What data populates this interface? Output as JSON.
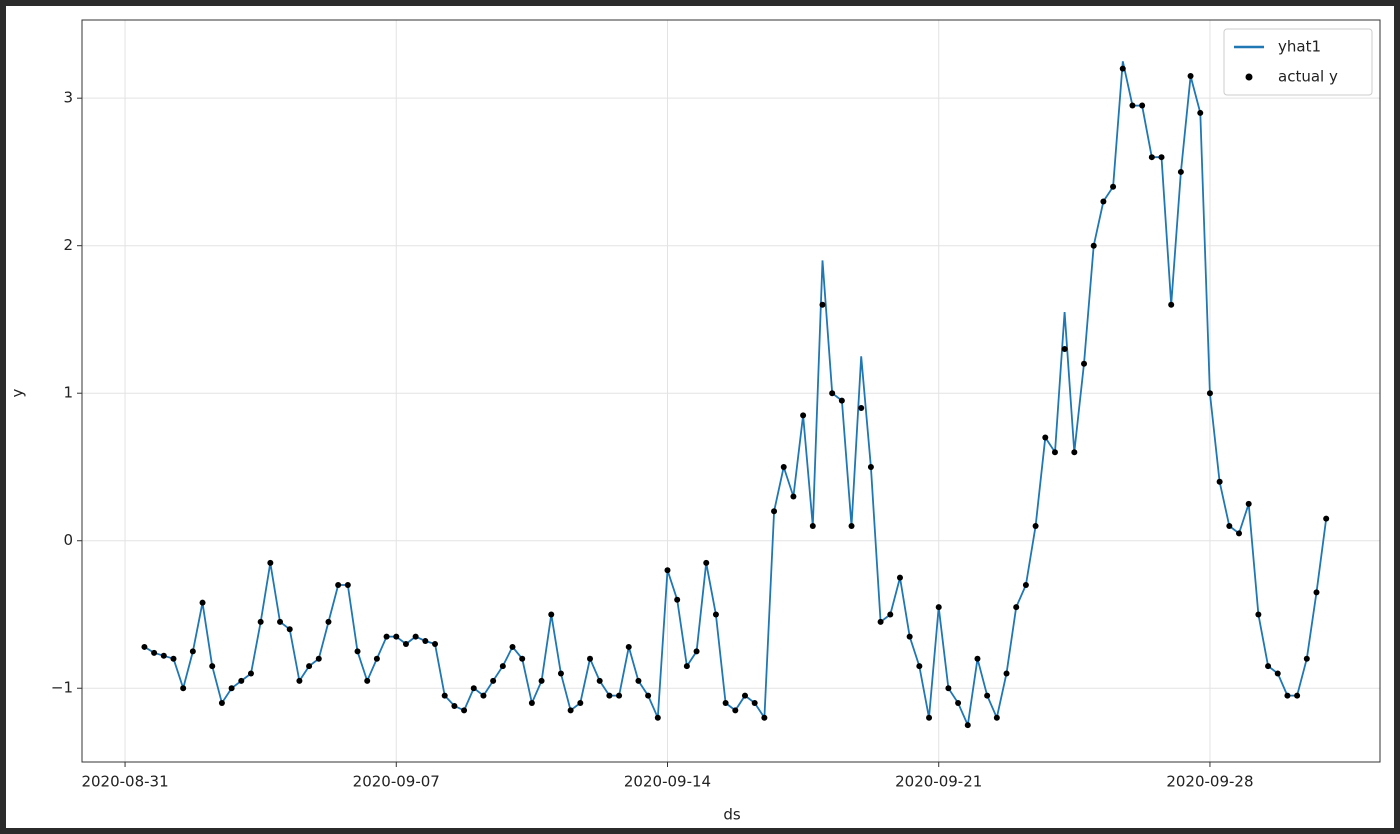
{
  "chart_data": {
    "type": "line",
    "xlabel": "ds",
    "ylabel": "y",
    "x": [
      "2020-08-31 12:00",
      "2020-08-31 18:00",
      "2020-09-01 00:00",
      "2020-09-01 06:00",
      "2020-09-01 12:00",
      "2020-09-01 18:00",
      "2020-09-02 00:00",
      "2020-09-02 06:00",
      "2020-09-02 12:00",
      "2020-09-02 18:00",
      "2020-09-03 00:00",
      "2020-09-03 06:00",
      "2020-09-03 12:00",
      "2020-09-03 18:00",
      "2020-09-04 00:00",
      "2020-09-04 06:00",
      "2020-09-04 12:00",
      "2020-09-04 18:00",
      "2020-09-05 00:00",
      "2020-09-05 06:00",
      "2020-09-05 12:00",
      "2020-09-05 18:00",
      "2020-09-06 00:00",
      "2020-09-06 06:00",
      "2020-09-06 12:00",
      "2020-09-06 18:00",
      "2020-09-07 00:00",
      "2020-09-07 06:00",
      "2020-09-07 12:00",
      "2020-09-07 18:00",
      "2020-09-08 00:00",
      "2020-09-08 06:00",
      "2020-09-08 12:00",
      "2020-09-08 18:00",
      "2020-09-09 00:00",
      "2020-09-09 06:00",
      "2020-09-09 12:00",
      "2020-09-09 18:00",
      "2020-09-10 00:00",
      "2020-09-10 06:00",
      "2020-09-10 12:00",
      "2020-09-10 18:00",
      "2020-09-11 00:00",
      "2020-09-11 06:00",
      "2020-09-11 12:00",
      "2020-09-11 18:00",
      "2020-09-12 00:00",
      "2020-09-12 06:00",
      "2020-09-12 12:00",
      "2020-09-12 18:00",
      "2020-09-13 00:00",
      "2020-09-13 06:00",
      "2020-09-13 12:00",
      "2020-09-13 18:00",
      "2020-09-14 00:00",
      "2020-09-14 06:00",
      "2020-09-14 12:00",
      "2020-09-14 18:00",
      "2020-09-15 00:00",
      "2020-09-15 06:00",
      "2020-09-15 12:00",
      "2020-09-15 18:00",
      "2020-09-16 00:00",
      "2020-09-16 06:00",
      "2020-09-16 12:00",
      "2020-09-16 18:00",
      "2020-09-17 00:00",
      "2020-09-17 06:00",
      "2020-09-17 12:00",
      "2020-09-17 18:00",
      "2020-09-18 00:00",
      "2020-09-18 06:00",
      "2020-09-18 12:00",
      "2020-09-18 18:00",
      "2020-09-19 00:00",
      "2020-09-19 06:00",
      "2020-09-19 12:00",
      "2020-09-19 18:00",
      "2020-09-20 00:00",
      "2020-09-20 06:00",
      "2020-09-20 12:00",
      "2020-09-20 18:00",
      "2020-09-21 00:00",
      "2020-09-21 06:00",
      "2020-09-21 12:00",
      "2020-09-21 18:00",
      "2020-09-22 00:00",
      "2020-09-22 06:00",
      "2020-09-22 12:00",
      "2020-09-22 18:00",
      "2020-09-23 00:00",
      "2020-09-23 06:00",
      "2020-09-23 12:00",
      "2020-09-23 18:00",
      "2020-09-24 00:00",
      "2020-09-24 06:00",
      "2020-09-24 12:00",
      "2020-09-24 18:00",
      "2020-09-25 00:00",
      "2020-09-25 06:00",
      "2020-09-25 12:00",
      "2020-09-25 18:00",
      "2020-09-26 00:00",
      "2020-09-26 06:00",
      "2020-09-26 12:00",
      "2020-09-26 18:00",
      "2020-09-27 00:00",
      "2020-09-27 06:00",
      "2020-09-27 12:00",
      "2020-09-27 18:00",
      "2020-09-28 00:00",
      "2020-09-28 06:00",
      "2020-09-28 12:00",
      "2020-09-28 18:00",
      "2020-09-29 00:00",
      "2020-09-29 06:00",
      "2020-09-29 12:00",
      "2020-09-29 18:00",
      "2020-09-30 00:00",
      "2020-09-30 06:00",
      "2020-09-30 12:00",
      "2020-09-30 18:00",
      "2020-10-01 00:00"
    ],
    "series": [
      {
        "name": "yhat1",
        "kind": "line",
        "color": "#1f77b4",
        "values": [
          -0.72,
          -0.76,
          -0.78,
          -0.8,
          -1.0,
          -0.75,
          -0.42,
          -0.85,
          -1.1,
          -1.0,
          -0.95,
          -0.9,
          -0.55,
          -0.15,
          -0.55,
          -0.6,
          -0.95,
          -0.85,
          -0.8,
          -0.55,
          -0.3,
          -0.3,
          -0.75,
          -0.95,
          -0.8,
          -0.65,
          -0.65,
          -0.7,
          -0.65,
          -0.68,
          -0.7,
          -1.05,
          -1.12,
          -1.15,
          -1.0,
          -1.05,
          -0.95,
          -0.85,
          -0.72,
          -0.8,
          -1.1,
          -0.95,
          -0.5,
          -0.9,
          -1.15,
          -1.1,
          -0.8,
          -0.95,
          -1.05,
          -1.05,
          -0.72,
          -0.95,
          -1.05,
          -1.2,
          -0.2,
          -0.4,
          -0.85,
          -0.75,
          -0.15,
          -0.5,
          -1.1,
          -1.15,
          -1.05,
          -1.1,
          -1.2,
          0.2,
          0.5,
          0.3,
          0.85,
          0.1,
          1.9,
          1.0,
          0.95,
          0.1,
          1.25,
          0.5,
          -0.55,
          -0.5,
          -0.25,
          -0.65,
          -0.85,
          -1.2,
          -0.45,
          -1.0,
          -1.1,
          -1.25,
          -0.8,
          -1.05,
          -1.2,
          -0.9,
          -0.45,
          -0.3,
          0.1,
          0.7,
          0.6,
          1.55,
          0.6,
          1.2,
          2.0,
          2.3,
          2.4,
          3.25,
          2.95,
          2.95,
          2.6,
          2.6,
          1.6,
          2.5,
          3.15,
          2.9,
          1.0,
          0.4,
          0.1,
          0.05,
          0.25,
          -0.5,
          -0.85,
          -0.9,
          -1.05,
          -1.05,
          -0.8,
          -0.35,
          0.15
        ]
      },
      {
        "name": "actual y",
        "kind": "dots",
        "color": "#000000",
        "values": [
          -0.72,
          -0.76,
          -0.78,
          -0.8,
          -1.0,
          -0.75,
          -0.42,
          -0.85,
          -1.1,
          -1.0,
          -0.95,
          -0.9,
          -0.55,
          -0.15,
          -0.55,
          -0.6,
          -0.95,
          -0.85,
          -0.8,
          -0.55,
          -0.3,
          -0.3,
          -0.75,
          -0.95,
          -0.8,
          -0.65,
          -0.65,
          -0.7,
          -0.65,
          -0.68,
          -0.7,
          -1.05,
          -1.12,
          -1.15,
          -1.0,
          -1.05,
          -0.95,
          -0.85,
          -0.72,
          -0.8,
          -1.1,
          -0.95,
          -0.5,
          -0.9,
          -1.15,
          -1.1,
          -0.8,
          -0.95,
          -1.05,
          -1.05,
          -0.72,
          -0.95,
          -1.05,
          -1.2,
          -0.2,
          -0.4,
          -0.85,
          -0.75,
          -0.15,
          -0.5,
          -1.1,
          -1.15,
          -1.05,
          -1.1,
          -1.2,
          0.2,
          0.5,
          0.3,
          0.85,
          0.1,
          1.6,
          1.0,
          0.95,
          0.1,
          0.9,
          0.5,
          -0.55,
          -0.5,
          -0.25,
          -0.65,
          -0.85,
          -1.2,
          -0.45,
          -1.0,
          -1.1,
          -1.25,
          -0.8,
          -1.05,
          -1.2,
          -0.9,
          -0.45,
          -0.3,
          0.1,
          0.7,
          0.6,
          1.3,
          0.6,
          1.2,
          2.0,
          2.3,
          2.4,
          3.2,
          2.95,
          2.95,
          2.6,
          2.6,
          1.6,
          2.5,
          3.15,
          2.9,
          1.0,
          0.4,
          0.1,
          0.05,
          0.25,
          -0.5,
          -0.85,
          -0.9,
          -1.05,
          -1.05,
          -0.8,
          -0.35,
          0.15
        ]
      }
    ],
    "xlim": [
      "2020-08-29 21:20",
      "2020-10-02 09:20"
    ],
    "xticks": [
      "2020-08-31",
      "2020-09-07",
      "2020-09-14",
      "2020-09-21",
      "2020-09-28"
    ],
    "ylim": [
      -1.5,
      3.53
    ],
    "yticks": [
      {
        "value": -1,
        "label": "−1"
      },
      0,
      1,
      2,
      3
    ],
    "grid": true,
    "legend": "upper right"
  }
}
